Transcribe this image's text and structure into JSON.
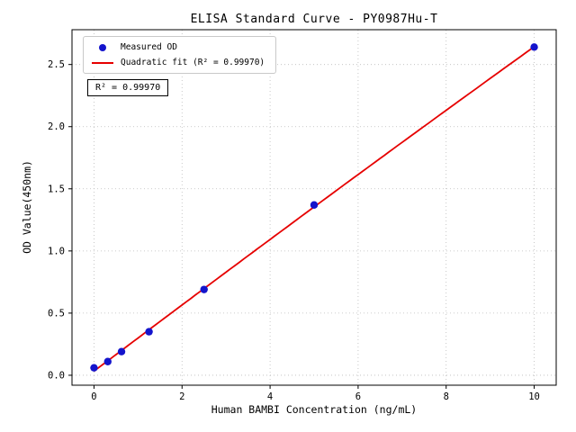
{
  "chart_data": {
    "type": "scatter",
    "title": "ELISA Standard Curve - PY0987Hu-T",
    "xlabel": "Human BAMBI Concentration (ng/mL)",
    "ylabel": "OD Value(450nm)",
    "xlim": [
      -0.5,
      10.5
    ],
    "ylim": [
      -0.08,
      2.78
    ],
    "x_ticks": [
      0,
      2,
      4,
      6,
      8,
      10
    ],
    "x_tick_labels": [
      "0",
      "2",
      "4",
      "6",
      "8",
      "10"
    ],
    "y_ticks": [
      0.0,
      0.5,
      1.0,
      1.5,
      2.0,
      2.5
    ],
    "y_tick_labels": [
      "0.0",
      "0.5",
      "1.0",
      "1.5",
      "2.0",
      "2.5"
    ],
    "grid": true,
    "grid_color": "#bbbbbb",
    "legend_position": "upper-left",
    "series": [
      {
        "name": "Measured OD",
        "type": "scatter",
        "color": "#1414cc",
        "x": [
          0,
          0.313,
          0.625,
          1.25,
          2.5,
          5,
          10
        ],
        "y": [
          0.06,
          0.11,
          0.19,
          0.35,
          0.69,
          1.37,
          2.64
        ]
      },
      {
        "name": "Quadratic fit (R² = 0.99970)",
        "type": "line",
        "color": "#e60000"
      }
    ],
    "annotation": "R² = 0.99970"
  }
}
